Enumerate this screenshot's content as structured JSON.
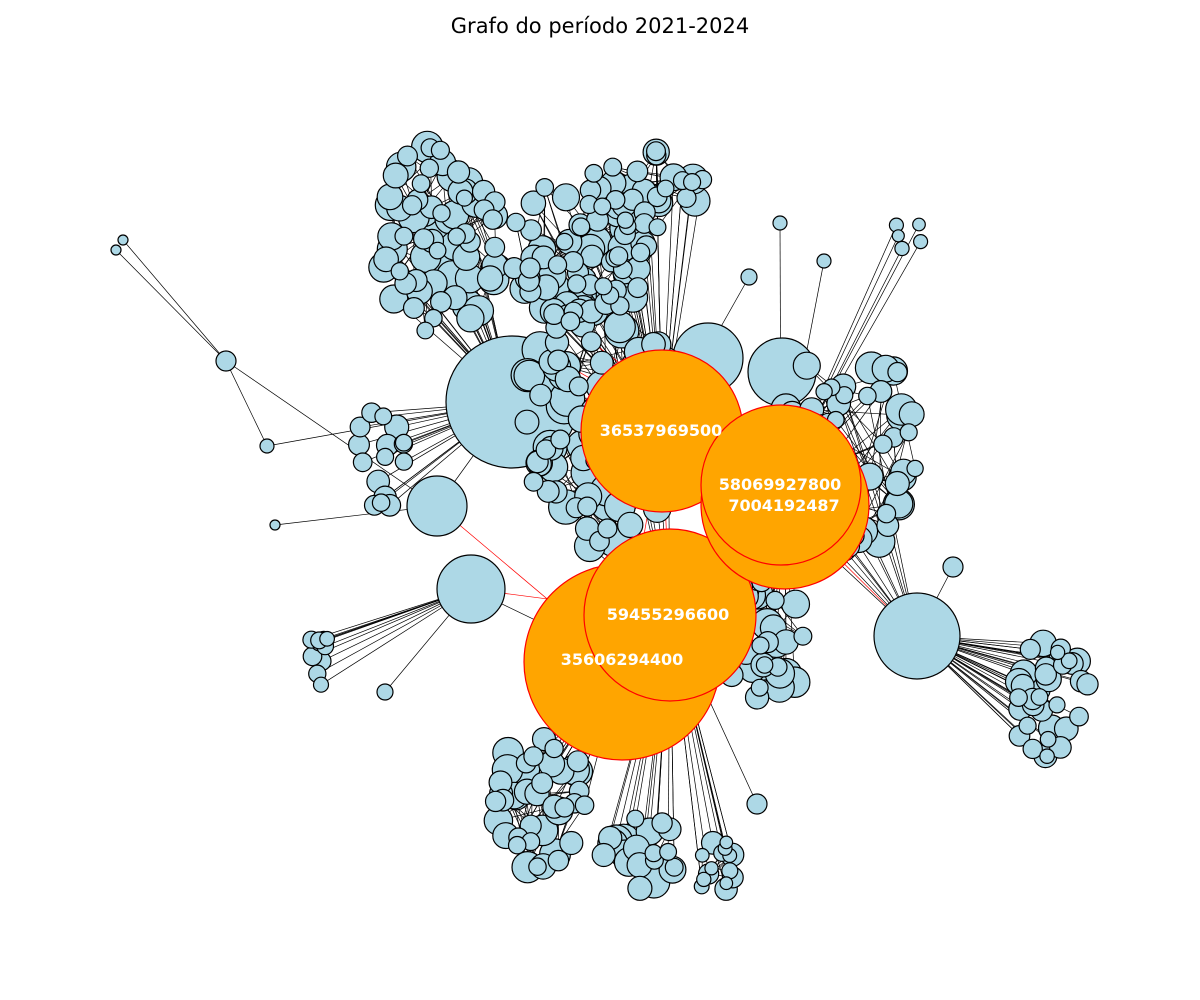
{
  "title": "Grafo do período 2021-2024",
  "colors": {
    "node_fill": "#add8e6",
    "node_stroke": "#000000",
    "hub_fill": "#ffa500",
    "hub_stroke": "#ff0000",
    "edge": "#000000",
    "hub_edge": "#ff0000",
    "label": "#ffffff"
  },
  "hubs": [
    {
      "id": "36537969500"
    },
    {
      "id": "58069927800"
    },
    {
      "id": "7004192487"
    },
    {
      "id": "59455296600"
    },
    {
      "id": "35606294400"
    }
  ]
}
